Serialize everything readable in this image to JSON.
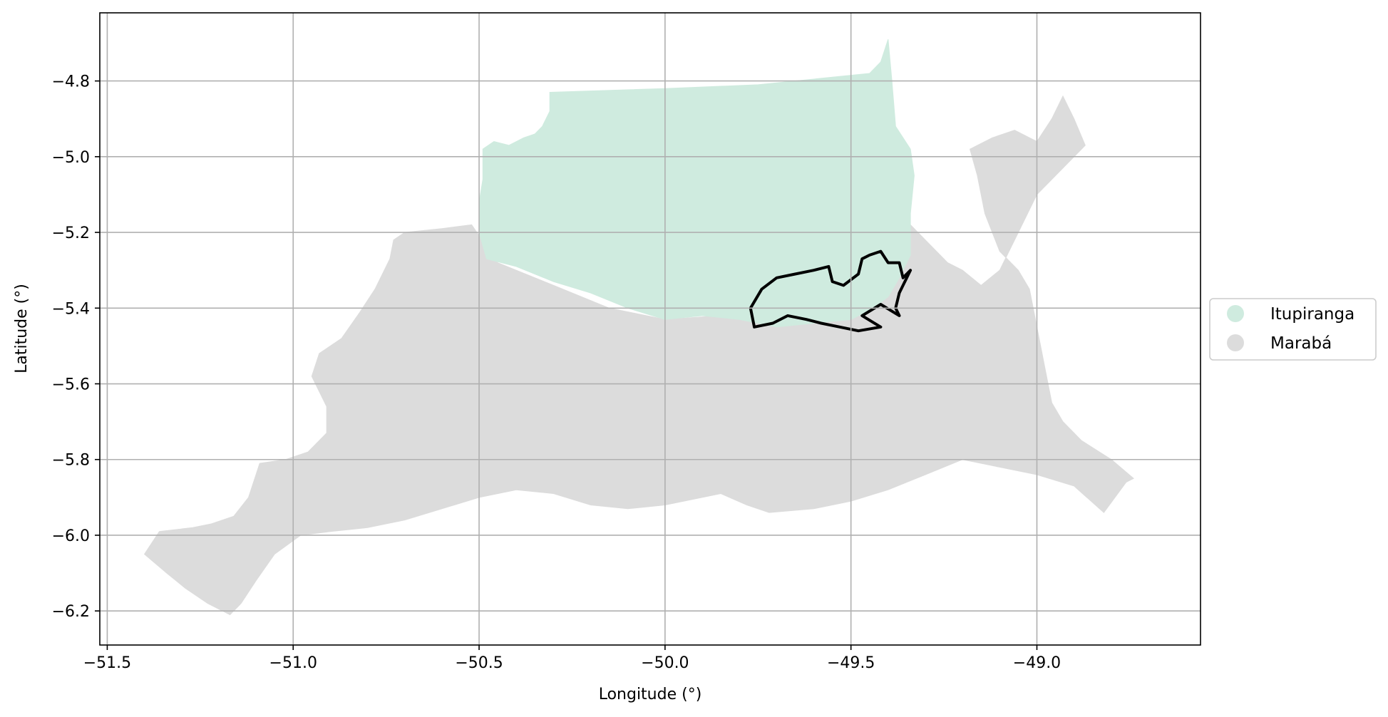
{
  "chart_data": {
    "type": "map",
    "xlabel": "Longitude (°)",
    "ylabel": "Latitude (°)",
    "xlim": [
      -51.52,
      -48.56
    ],
    "ylim": [
      -6.29,
      -4.62
    ],
    "grid": true,
    "legend_position": "right-center",
    "x_ticks": [
      "−51.5",
      "−51.0",
      "−50.5",
      "−50.0",
      "−49.5",
      "−49.0"
    ],
    "x_tick_values": [
      -51.5,
      -51.0,
      -50.5,
      -50.0,
      -49.5,
      -49.0
    ],
    "y_ticks": [
      "−4.8",
      "−5.0",
      "−5.2",
      "−5.4",
      "−5.6",
      "−5.8",
      "−6.0",
      "−6.2"
    ],
    "y_tick_values": [
      -4.8,
      -5.0,
      -5.2,
      -5.4,
      -5.6,
      -5.8,
      -6.0,
      -6.2
    ],
    "legend": [
      {
        "label": "Itupiranga",
        "color": "#cfebdf"
      },
      {
        "label": "Marabá",
        "color": "#dcdcdc"
      }
    ],
    "regions": [
      {
        "name": "Marabá",
        "color": "#dcdcdc",
        "coords": [
          [
            -50.52,
            -5.18
          ],
          [
            -50.6,
            -5.19
          ],
          [
            -50.7,
            -5.2
          ],
          [
            -50.73,
            -5.22
          ],
          [
            -50.74,
            -5.27
          ],
          [
            -50.78,
            -5.35
          ],
          [
            -50.82,
            -5.41
          ],
          [
            -50.87,
            -5.48
          ],
          [
            -50.93,
            -5.52
          ],
          [
            -50.95,
            -5.58
          ],
          [
            -50.91,
            -5.66
          ],
          [
            -50.91,
            -5.73
          ],
          [
            -50.96,
            -5.78
          ],
          [
            -51.02,
            -5.8
          ],
          [
            -51.09,
            -5.81
          ],
          [
            -51.12,
            -5.9
          ],
          [
            -51.16,
            -5.95
          ],
          [
            -51.22,
            -5.97
          ],
          [
            -51.27,
            -5.98
          ],
          [
            -51.36,
            -5.99
          ],
          [
            -51.4,
            -6.05
          ],
          [
            -51.34,
            -6.1
          ],
          [
            -51.29,
            -6.14
          ],
          [
            -51.23,
            -6.18
          ],
          [
            -51.17,
            -6.21
          ],
          [
            -51.14,
            -6.18
          ],
          [
            -51.1,
            -6.12
          ],
          [
            -51.05,
            -6.05
          ],
          [
            -50.98,
            -6.0
          ],
          [
            -50.9,
            -5.99
          ],
          [
            -50.8,
            -5.98
          ],
          [
            -50.7,
            -5.96
          ],
          [
            -50.6,
            -5.93
          ],
          [
            -50.5,
            -5.9
          ],
          [
            -50.4,
            -5.88
          ],
          [
            -50.3,
            -5.89
          ],
          [
            -50.2,
            -5.92
          ],
          [
            -50.1,
            -5.93
          ],
          [
            -50.0,
            -5.92
          ],
          [
            -49.9,
            -5.9
          ],
          [
            -49.85,
            -5.89
          ],
          [
            -49.78,
            -5.92
          ],
          [
            -49.72,
            -5.94
          ],
          [
            -49.6,
            -5.93
          ],
          [
            -49.5,
            -5.91
          ],
          [
            -49.4,
            -5.88
          ],
          [
            -49.3,
            -5.84
          ],
          [
            -49.2,
            -5.8
          ],
          [
            -49.1,
            -5.82
          ],
          [
            -49.0,
            -5.84
          ],
          [
            -48.9,
            -5.87
          ],
          [
            -48.82,
            -5.94
          ],
          [
            -48.76,
            -5.86
          ],
          [
            -48.74,
            -5.85
          ],
          [
            -48.8,
            -5.8
          ],
          [
            -48.88,
            -5.75
          ],
          [
            -48.93,
            -5.7
          ],
          [
            -48.96,
            -5.65
          ],
          [
            -48.98,
            -5.55
          ],
          [
            -49.0,
            -5.45
          ],
          [
            -49.02,
            -5.35
          ],
          [
            -49.05,
            -5.3
          ],
          [
            -49.1,
            -5.25
          ],
          [
            -49.14,
            -5.15
          ],
          [
            -49.16,
            -5.05
          ],
          [
            -49.18,
            -4.98
          ],
          [
            -49.12,
            -4.95
          ],
          [
            -49.06,
            -4.93
          ],
          [
            -49.0,
            -4.96
          ],
          [
            -48.96,
            -4.9
          ],
          [
            -48.93,
            -4.84
          ],
          [
            -48.9,
            -4.9
          ],
          [
            -48.87,
            -4.97
          ],
          [
            -48.95,
            -5.05
          ],
          [
            -49.0,
            -5.1
          ],
          [
            -49.05,
            -5.2
          ],
          [
            -49.1,
            -5.3
          ],
          [
            -49.15,
            -5.34
          ],
          [
            -49.2,
            -5.3
          ],
          [
            -49.24,
            -5.28
          ],
          [
            -49.3,
            -5.22
          ],
          [
            -49.34,
            -5.18
          ],
          [
            -49.38,
            -5.2
          ],
          [
            -49.45,
            -5.35
          ],
          [
            -49.55,
            -5.43
          ],
          [
            -49.7,
            -5.44
          ],
          [
            -49.85,
            -5.42
          ],
          [
            -50.0,
            -5.43
          ],
          [
            -50.15,
            -5.4
          ],
          [
            -50.3,
            -5.34
          ],
          [
            -50.45,
            -5.28
          ],
          [
            -50.52,
            -5.18
          ]
        ]
      },
      {
        "name": "Itupiranga",
        "color": "#cfebdf",
        "coords": [
          [
            -50.31,
            -4.83
          ],
          [
            -50.0,
            -4.82
          ],
          [
            -49.75,
            -4.81
          ],
          [
            -49.55,
            -4.79
          ],
          [
            -49.45,
            -4.78
          ],
          [
            -49.42,
            -4.75
          ],
          [
            -49.4,
            -4.69
          ],
          [
            -49.39,
            -4.8
          ],
          [
            -49.38,
            -4.92
          ],
          [
            -49.34,
            -4.98
          ],
          [
            -49.33,
            -5.05
          ],
          [
            -49.34,
            -5.15
          ],
          [
            -49.34,
            -5.26
          ],
          [
            -49.37,
            -5.32
          ],
          [
            -49.4,
            -5.37
          ],
          [
            -49.44,
            -5.4
          ],
          [
            -49.5,
            -5.43
          ],
          [
            -49.6,
            -5.44
          ],
          [
            -49.7,
            -5.45
          ],
          [
            -49.8,
            -5.43
          ],
          [
            -49.9,
            -5.42
          ],
          [
            -50.0,
            -5.43
          ],
          [
            -50.1,
            -5.4
          ],
          [
            -50.2,
            -5.36
          ],
          [
            -50.3,
            -5.33
          ],
          [
            -50.4,
            -5.29
          ],
          [
            -50.48,
            -5.27
          ],
          [
            -50.5,
            -5.2
          ],
          [
            -50.5,
            -5.12
          ],
          [
            -50.49,
            -5.06
          ],
          [
            -50.49,
            -4.98
          ],
          [
            -50.46,
            -4.96
          ],
          [
            -50.42,
            -4.97
          ],
          [
            -50.38,
            -4.95
          ],
          [
            -50.35,
            -4.94
          ],
          [
            -50.33,
            -4.92
          ],
          [
            -50.31,
            -4.88
          ],
          [
            -50.31,
            -4.83
          ]
        ]
      }
    ],
    "highlighted_outline": {
      "coords": [
        [
          -49.77,
          -5.4
        ],
        [
          -49.74,
          -5.35
        ],
        [
          -49.7,
          -5.32
        ],
        [
          -49.65,
          -5.31
        ],
        [
          -49.6,
          -5.3
        ],
        [
          -49.56,
          -5.29
        ],
        [
          -49.55,
          -5.33
        ],
        [
          -49.52,
          -5.34
        ],
        [
          -49.48,
          -5.31
        ],
        [
          -49.47,
          -5.27
        ],
        [
          -49.45,
          -5.26
        ],
        [
          -49.42,
          -5.25
        ],
        [
          -49.4,
          -5.28
        ],
        [
          -49.37,
          -5.28
        ],
        [
          -49.36,
          -5.32
        ],
        [
          -49.34,
          -5.3
        ],
        [
          -49.37,
          -5.36
        ],
        [
          -49.38,
          -5.4
        ],
        [
          -49.37,
          -5.42
        ],
        [
          -49.42,
          -5.39
        ],
        [
          -49.47,
          -5.42
        ],
        [
          -49.42,
          -5.45
        ],
        [
          -49.48,
          -5.46
        ],
        [
          -49.53,
          -5.45
        ],
        [
          -49.58,
          -5.44
        ],
        [
          -49.62,
          -5.43
        ],
        [
          -49.67,
          -5.42
        ],
        [
          -49.71,
          -5.44
        ],
        [
          -49.76,
          -5.45
        ],
        [
          -49.77,
          -5.4
        ]
      ]
    }
  }
}
